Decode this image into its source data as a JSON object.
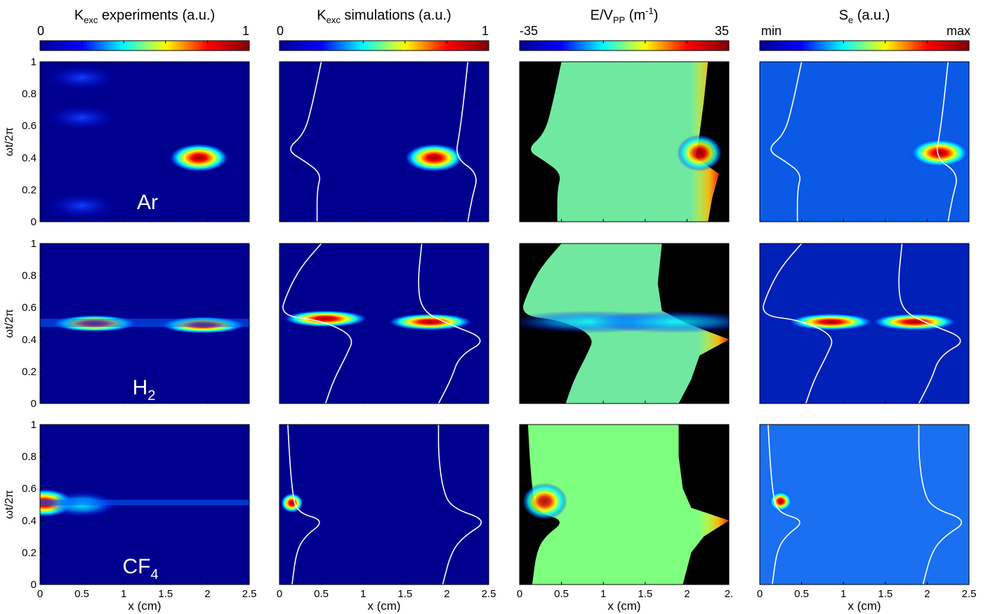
{
  "colormap": [
    "#00008f",
    "#0000ff",
    "#00ffff",
    "#ffff00",
    "#ff0000",
    "#800000"
  ],
  "colors": {
    "frame": "#000000",
    "sheath_line": "#ffffff",
    "electrode_region": "#000000",
    "bg_dark": "#00008f"
  },
  "columns": [
    {
      "title_main": "K",
      "title_sub": "exc",
      "title_rest": " experiments (a.u.)",
      "cbar_min": "0",
      "cbar_max": "1"
    },
    {
      "title_main": "K",
      "title_sub": "exc",
      "title_rest": " simulations (a.u.)",
      "cbar_min": "0",
      "cbar_max": "1"
    },
    {
      "title_main": "E/V",
      "title_sub": "PP",
      "title_rest": " (m",
      "title_sup": "-1",
      "title_end": ")",
      "cbar_min": "-35",
      "cbar_max": "35"
    },
    {
      "title_main": "S",
      "title_sub": "e",
      "title_rest": " (a.u.)",
      "cbar_min": "min",
      "cbar_max": "max"
    }
  ],
  "gases": [
    {
      "label": "Ar",
      "sub": ""
    },
    {
      "label": "H",
      "sub": "2"
    },
    {
      "label": "CF",
      "sub": "4"
    }
  ],
  "chart_data": {
    "type": "heatmap",
    "rows": [
      "Ar",
      "H2",
      "CF4"
    ],
    "panel_columns": [
      "Kexc experiments",
      "Kexc simulations",
      "E/VPP",
      "Se"
    ],
    "xlabel": "x (cm)",
    "ylabel": "ωt/2π",
    "xlim": [
      0,
      2.5
    ],
    "ylim": [
      0,
      1
    ],
    "xticks": [
      "0",
      "0.5",
      "1",
      "1.5",
      "2",
      "2.5"
    ],
    "xticks_col3": [
      "0",
      "0.5",
      "1",
      "1.5",
      "2",
      "2."
    ],
    "yticks": [
      "0",
      "0.2",
      "0.4",
      "0.6",
      "0.8",
      "1"
    ],
    "hotspots": {
      "Ar": {
        "exp": [
          {
            "x": 1.9,
            "y": 0.4,
            "v": 1.0
          },
          {
            "x": 0.5,
            "y": 0.9,
            "v": 0.2
          },
          {
            "x": 0.5,
            "y": 0.65,
            "v": 0.18
          },
          {
            "x": 0.5,
            "y": 0.1,
            "v": 0.15
          }
        ],
        "sim": [
          {
            "x": 1.85,
            "y": 0.4,
            "v": 1.0
          }
        ],
        "se": [
          {
            "x": 2.15,
            "y": 0.43,
            "v": 1.0
          }
        ]
      },
      "H2": {
        "exp": [
          {
            "x": 0.65,
            "y": 0.5,
            "v": 0.85
          },
          {
            "x": 1.95,
            "y": 0.49,
            "v": 0.85
          }
        ],
        "sim": [
          {
            "x": 0.55,
            "y": 0.53,
            "v": 0.8
          },
          {
            "x": 1.8,
            "y": 0.51,
            "v": 1.0
          }
        ],
        "se": [
          {
            "x": 0.85,
            "y": 0.51,
            "v": 1.0
          },
          {
            "x": 1.85,
            "y": 0.51,
            "v": 0.9
          }
        ]
      },
      "CF4": {
        "exp": [
          {
            "x": 0.05,
            "y": 0.51,
            "v": 0.85
          },
          {
            "x": 0.5,
            "y": 0.5,
            "v": 0.3
          }
        ],
        "sim": [
          {
            "x": 0.15,
            "y": 0.51,
            "v": 1.0
          }
        ],
        "se": [
          {
            "x": 0.25,
            "y": 0.52,
            "v": 1.0
          }
        ]
      }
    },
    "sheath_edges": {
      "Ar": {
        "left": [
          [
            0.45,
            0
          ],
          [
            0.45,
            0.2
          ],
          [
            0.5,
            0.3
          ],
          [
            0.3,
            0.38
          ],
          [
            0.08,
            0.45
          ],
          [
            0.3,
            0.55
          ],
          [
            0.4,
            0.75
          ],
          [
            0.5,
            1.0
          ]
        ],
        "right": [
          [
            2.25,
            0
          ],
          [
            2.3,
            0.15
          ],
          [
            2.38,
            0.3
          ],
          [
            2.1,
            0.4
          ],
          [
            2.15,
            0.55
          ],
          [
            2.2,
            0.75
          ],
          [
            2.25,
            1.0
          ]
        ]
      },
      "H2": {
        "left": [
          [
            0.55,
            0
          ],
          [
            0.65,
            0.15
          ],
          [
            0.8,
            0.3
          ],
          [
            0.9,
            0.42
          ],
          [
            0.5,
            0.52
          ],
          [
            0.0,
            0.55
          ],
          [
            0.1,
            0.7
          ],
          [
            0.25,
            0.85
          ],
          [
            0.5,
            1.0
          ]
        ],
        "right": [
          [
            1.9,
            0
          ],
          [
            2.05,
            0.15
          ],
          [
            2.15,
            0.3
          ],
          [
            2.5,
            0.4
          ],
          [
            2.0,
            0.5
          ],
          [
            1.7,
            0.58
          ],
          [
            1.65,
            0.75
          ],
          [
            1.7,
            1.0
          ]
        ]
      },
      "CF4": {
        "left": [
          [
            0.15,
            0
          ],
          [
            0.2,
            0.2
          ],
          [
            0.3,
            0.3
          ],
          [
            0.55,
            0.4
          ],
          [
            0.2,
            0.45
          ],
          [
            0.15,
            0.6
          ],
          [
            0.12,
            0.8
          ],
          [
            0.1,
            1.0
          ]
        ],
        "right": [
          [
            1.95,
            0
          ],
          [
            2.05,
            0.2
          ],
          [
            2.2,
            0.3
          ],
          [
            2.5,
            0.4
          ],
          [
            2.05,
            0.48
          ],
          [
            1.95,
            0.6
          ],
          [
            1.9,
            0.8
          ],
          [
            1.9,
            1.0
          ]
        ]
      }
    },
    "efield_bulk": "near zero (green-cyan) between sheaths, positive (red) at right sheath, negative region black outside"
  }
}
